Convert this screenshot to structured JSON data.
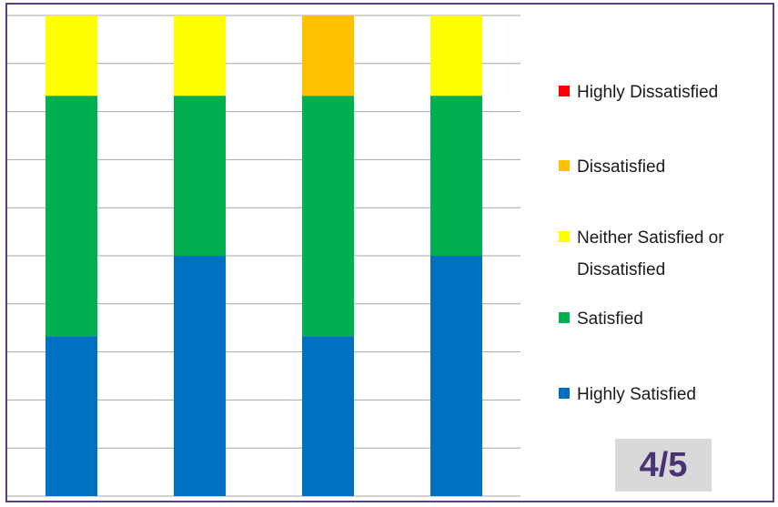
{
  "slide_number": "4/5",
  "chart_data": {
    "type": "bar",
    "stacked": true,
    "categories": [
      "",
      "",
      "",
      ""
    ],
    "ylim": [
      0,
      100
    ],
    "grid": true,
    "legend_position": "right",
    "series": [
      {
        "name": "Highly Satisfied",
        "color": "#0070c0",
        "values": [
          33.3,
          50,
          33.3,
          50
        ]
      },
      {
        "name": "Satisfied",
        "color": "#00b050",
        "values": [
          50,
          33.3,
          50,
          33.3
        ]
      },
      {
        "name": "Neither Satisfied or Dissatisfied",
        "color": "#ffff00",
        "values": [
          16.7,
          16.7,
          0,
          16.7
        ]
      },
      {
        "name": "Dissatisfied",
        "color": "#ffc000",
        "values": [
          0,
          0,
          16.7,
          0
        ]
      },
      {
        "name": "Highly Dissatisfied",
        "color": "#ff0000",
        "values": [
          0,
          0,
          0,
          0
        ]
      }
    ],
    "legend_order": [
      4,
      3,
      2,
      1,
      0
    ]
  }
}
